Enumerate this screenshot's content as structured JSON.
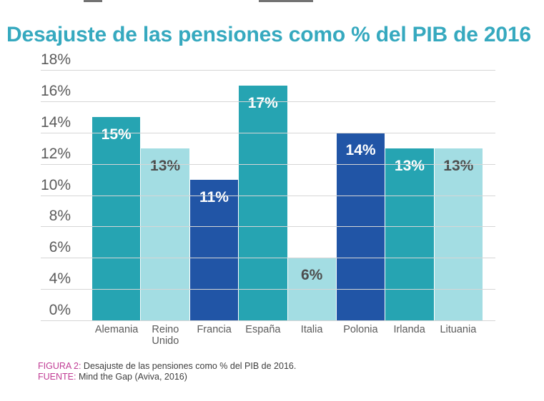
{
  "title": "Desajuste de las pensiones como % del PIB de 2016",
  "chart_data": {
    "type": "bar",
    "categories": [
      "Alemania",
      "Reino Unido",
      "Francia",
      "España",
      "Italia",
      "Polonia",
      "Irlanda",
      "Lituania"
    ],
    "values": [
      15,
      13,
      11,
      17,
      6,
      14,
      13,
      13
    ],
    "value_labels": [
      "15%",
      "13%",
      "11%",
      "17%",
      "6%",
      "14%",
      "13%",
      "13%"
    ],
    "bar_colors": [
      "#26A4B2",
      "#A3DDE3",
      "#2155A6",
      "#26A4B2",
      "#A3DDE3",
      "#2155A6",
      "#26A4B2",
      "#A3DDE3"
    ],
    "value_label_colors": [
      "#FFFFFF",
      "#4D4D4D",
      "#FFFFFF",
      "#FFFFFF",
      "#4D4D4D",
      "#FFFFFF",
      "#FFFFFF",
      "#4D4D4D"
    ],
    "title": "Desajuste de las pensiones como % del PIB de 2016",
    "xlabel": "",
    "ylabel": "",
    "y_ticks": [
      "18%",
      "16%",
      "14%",
      "12%",
      "10%",
      "8%",
      "6%",
      "4%",
      "0%"
    ],
    "grid": "horizontal",
    "legend": "none",
    "render": {
      "top_value": 18,
      "baseline_value": 2
    }
  },
  "caption": {
    "figure_label": "FIGURA 2:",
    "figure_text": " Desajuste de las pensiones como % del PIB de 2016.",
    "source_label": "FUENTE:",
    "source_text": " Mind the Gap (Aviva, 2016)"
  },
  "colors": {
    "title": "#36A9BF",
    "teal_bar": "#26A4B2",
    "light_cyan_bar": "#A3DDE3",
    "dark_blue_bar": "#2155A6",
    "gridline": "#D6D6D6",
    "axis_text": "#5B5B5B",
    "caption_accent": "#C03B94"
  }
}
